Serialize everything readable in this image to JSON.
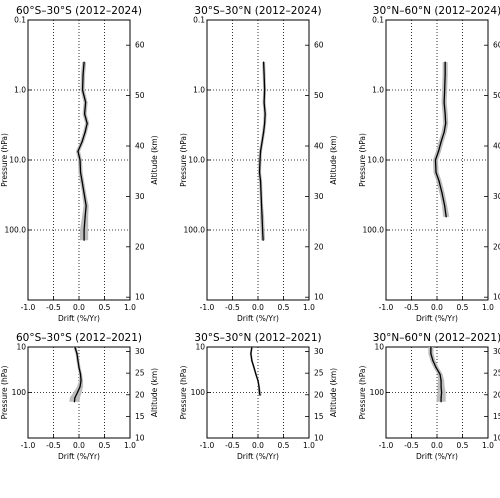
{
  "chart_data": [
    {
      "type": "line",
      "title": "60°S–30°S (2012–2024)",
      "xlabel": "Drift (%/Yr)",
      "ylabel": "Pressure (hPa)",
      "y2label": "Altitude (km)",
      "xlim": [
        -1.0,
        1.0
      ],
      "xticks": [
        "-1.0",
        "-0.5",
        "0.0",
        "0.5",
        "1.0"
      ],
      "ylim_pressure": [
        0.1,
        1000
      ],
      "yticks_pressure": [
        "0.1",
        "1.0",
        "10.0",
        "100.0"
      ],
      "altitude_ticks": [
        "10",
        "20",
        "30",
        "40",
        "50",
        "60"
      ],
      "y_scale": "log",
      "grid": "dotted",
      "series": [
        {
          "pressure": [
            0.4,
            0.6,
            1.0,
            1.5,
            2.2,
            3.0,
            4.0,
            5.5,
            7.5,
            10,
            15,
            20,
            30,
            45,
            65,
            100,
            140
          ],
          "drift": [
            0.1,
            0.08,
            0.07,
            0.13,
            0.11,
            0.16,
            0.12,
            0.06,
            -0.02,
            0.02,
            0.03,
            0.06,
            0.1,
            0.14,
            0.12,
            0.1,
            0.1
          ],
          "uncertainty": [
            0.04,
            0.04,
            0.04,
            0.04,
            0.04,
            0.04,
            0.04,
            0.04,
            0.04,
            0.04,
            0.04,
            0.04,
            0.04,
            0.05,
            0.06,
            0.08,
            0.08
          ]
        }
      ]
    },
    {
      "type": "line",
      "title": "30°S–30°N (2012–2024)",
      "xlabel": "Drift (%/Yr)",
      "ylabel": "Pressure (hPa)",
      "y2label": "Altitude (km)",
      "xlim": [
        -1.0,
        1.0
      ],
      "xticks": [
        "-1.0",
        "-0.5",
        "0.0",
        "0.5",
        "1.0"
      ],
      "ylim_pressure": [
        0.1,
        1000
      ],
      "yticks_pressure": [
        "0.1",
        "1.0",
        "10.0",
        "100.0"
      ],
      "altitude_ticks": [
        "10",
        "20",
        "30",
        "40",
        "50",
        "60"
      ],
      "y_scale": "log",
      "grid": "dotted",
      "series": [
        {
          "pressure": [
            0.4,
            0.6,
            1.0,
            1.5,
            2.2,
            3.0,
            4.0,
            5.5,
            7.5,
            10,
            15,
            20,
            30,
            45,
            65,
            100,
            140
          ],
          "drift": [
            0.11,
            0.12,
            0.13,
            0.12,
            0.14,
            0.13,
            0.11,
            0.08,
            0.05,
            0.04,
            0.03,
            0.05,
            0.06,
            0.07,
            0.08,
            0.09,
            0.1
          ],
          "uncertainty": [
            0.03,
            0.03,
            0.03,
            0.03,
            0.03,
            0.03,
            0.03,
            0.03,
            0.03,
            0.03,
            0.03,
            0.03,
            0.03,
            0.03,
            0.04,
            0.04,
            0.04
          ]
        }
      ]
    },
    {
      "type": "line",
      "title": "30°N–60°N (2012–2024)",
      "xlabel": "Drift (%/Yr)",
      "ylabel": "Pressure (hPa)",
      "y2label": "Altitude (km)",
      "xlim": [
        -1.0,
        1.0
      ],
      "xticks": [
        "-1.0",
        "-0.5",
        "0.0",
        "0.5",
        "1.0"
      ],
      "ylim_pressure": [
        0.1,
        1000
      ],
      "yticks_pressure": [
        "0.1",
        "1.0",
        "10.0",
        "100.0"
      ],
      "altitude_ticks": [
        "10",
        "20",
        "30",
        "40",
        "50",
        "60"
      ],
      "y_scale": "log",
      "grid": "dotted",
      "series": [
        {
          "pressure": [
            0.4,
            0.6,
            1.0,
            1.5,
            2.2,
            3.0,
            4.0,
            5.5,
            7.5,
            10,
            15,
            20,
            30,
            45,
            65
          ],
          "drift": [
            0.16,
            0.16,
            0.15,
            0.14,
            0.16,
            0.17,
            0.14,
            0.08,
            0.03,
            -0.03,
            -0.02,
            0.04,
            0.1,
            0.15,
            0.18
          ],
          "uncertainty": [
            0.05,
            0.05,
            0.05,
            0.05,
            0.05,
            0.05,
            0.05,
            0.05,
            0.05,
            0.05,
            0.05,
            0.05,
            0.05,
            0.05,
            0.06
          ]
        }
      ]
    },
    {
      "type": "line",
      "title": "60°S–30°S (2012–2021)",
      "xlabel": "Drift (%/Yr)",
      "ylabel": "Pressure (hPa)",
      "y2label": "Altitude (km)",
      "xlim": [
        -1.0,
        1.0
      ],
      "xticks": [
        "-1.0",
        "-0.5",
        "0.0",
        "0.5",
        "1.0"
      ],
      "ylim_pressure": [
        10,
        1000
      ],
      "yticks_pressure": [
        "10",
        "100"
      ],
      "altitude_ticks": [
        "10",
        "15",
        "20",
        "25",
        "30"
      ],
      "y_scale": "log",
      "grid": "dotted",
      "series": [
        {
          "pressure": [
            10,
            14,
            20,
            28,
            40,
            55,
            75,
            100,
            130,
            160
          ],
          "drift": [
            -0.08,
            -0.04,
            -0.02,
            0.0,
            0.03,
            0.04,
            0.02,
            -0.03,
            -0.08,
            -0.09
          ],
          "uncertainty": [
            0.03,
            0.03,
            0.03,
            0.03,
            0.03,
            0.04,
            0.06,
            0.08,
            0.1,
            0.1
          ]
        }
      ]
    },
    {
      "type": "line",
      "title": "30°S–30°N (2012–2021)",
      "xlabel": "Drift (%/Yr)",
      "ylabel": "Pressure (hPa)",
      "y2label": "Altitude (km)",
      "xlim": [
        -1.0,
        1.0
      ],
      "xticks": [
        "-1.0",
        "-0.5",
        "0.0",
        "0.5",
        "1.0"
      ],
      "ylim_pressure": [
        10,
        1000
      ],
      "yticks_pressure": [
        "10",
        "100"
      ],
      "altitude_ticks": [
        "10",
        "15",
        "20",
        "25",
        "30"
      ],
      "y_scale": "log",
      "grid": "dotted",
      "series": [
        {
          "pressure": [
            10,
            14,
            20,
            28,
            40,
            55,
            75,
            100,
            115
          ],
          "drift": [
            -0.12,
            -0.14,
            -0.12,
            -0.08,
            -0.04,
            0.0,
            0.02,
            0.03,
            0.04
          ],
          "uncertainty": [
            0.02,
            0.02,
            0.02,
            0.02,
            0.02,
            0.02,
            0.02,
            0.03,
            0.03
          ]
        }
      ]
    },
    {
      "type": "line",
      "title": "30°N–60°N (2012–2021)",
      "xlabel": "Drift (%/Yr)",
      "ylabel": "Pressure (hPa)",
      "y2label": "Altitude (km)",
      "xlim": [
        -1.0,
        1.0
      ],
      "xticks": [
        "-1.0",
        "-0.5",
        "0.0",
        "0.5",
        "1.0"
      ],
      "ylim_pressure": [
        10,
        1000
      ],
      "yticks_pressure": [
        "10",
        "100"
      ],
      "altitude_ticks": [
        "10",
        "15",
        "20",
        "25",
        "30"
      ],
      "y_scale": "log",
      "grid": "dotted",
      "series": [
        {
          "pressure": [
            10,
            14,
            20,
            28,
            40,
            55,
            75,
            100,
            130,
            160
          ],
          "drift": [
            -0.12,
            -0.12,
            -0.08,
            -0.02,
            0.06,
            0.08,
            0.08,
            0.09,
            0.08,
            0.08
          ],
          "uncertainty": [
            0.05,
            0.05,
            0.05,
            0.05,
            0.05,
            0.06,
            0.07,
            0.08,
            0.09,
            0.09
          ]
        }
      ]
    }
  ],
  "colors": {
    "line": "#000000",
    "band": "#bdbdbd",
    "grid": "#000000"
  }
}
